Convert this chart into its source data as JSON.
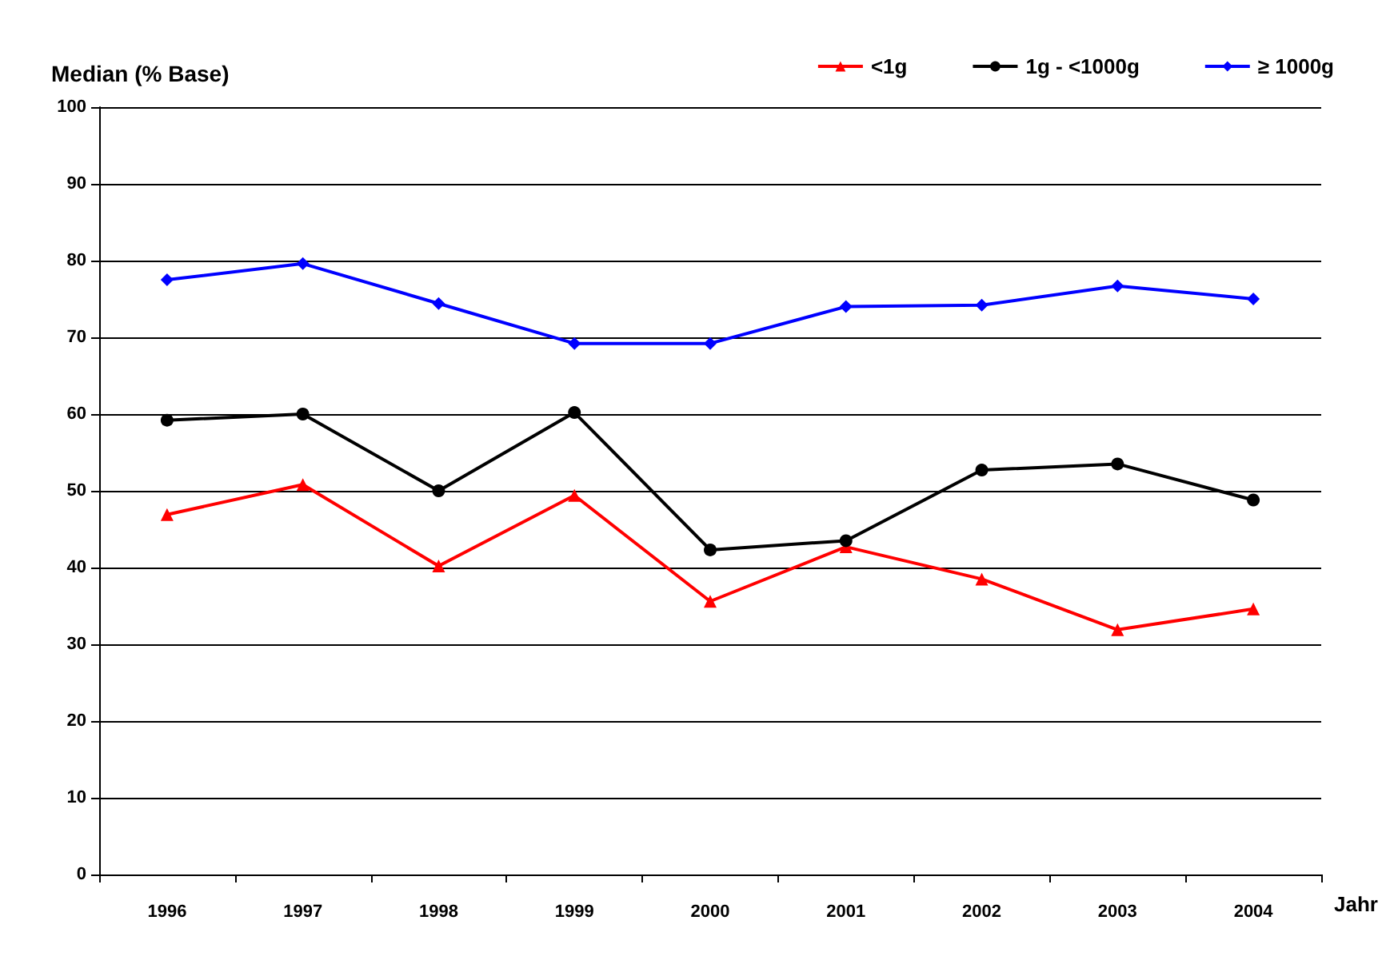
{
  "chart_data": {
    "type": "line",
    "ylabel": "Median (% Base)",
    "xlabel": "Jahr",
    "categories": [
      "1996",
      "1997",
      "1998",
      "1999",
      "2000",
      "2001",
      "2002",
      "2003",
      "2004"
    ],
    "series": [
      {
        "name": "<1g",
        "color": "#ff0000",
        "marker": "triangle",
        "values": [
          46.9,
          50.8,
          40.2,
          49.4,
          35.6,
          42.7,
          38.5,
          31.9,
          34.6
        ]
      },
      {
        "name": "1g - <1000g",
        "color": "#000000",
        "marker": "circle",
        "values": [
          59.2,
          60,
          50,
          60.2,
          42.3,
          43.5,
          52.7,
          53.5,
          48.8
        ]
      },
      {
        "name": "≥ 1000g",
        "color": "#0000ff",
        "marker": "diamond",
        "values": [
          77.5,
          79.6,
          74.4,
          69.2,
          69.2,
          74,
          74.2,
          76.7,
          75
        ]
      }
    ],
    "ylim": [
      0,
      100
    ],
    "yticks": [
      0,
      10,
      20,
      30,
      40,
      50,
      60,
      70,
      80,
      90,
      100
    ],
    "grid": "y",
    "legend": "top right"
  }
}
